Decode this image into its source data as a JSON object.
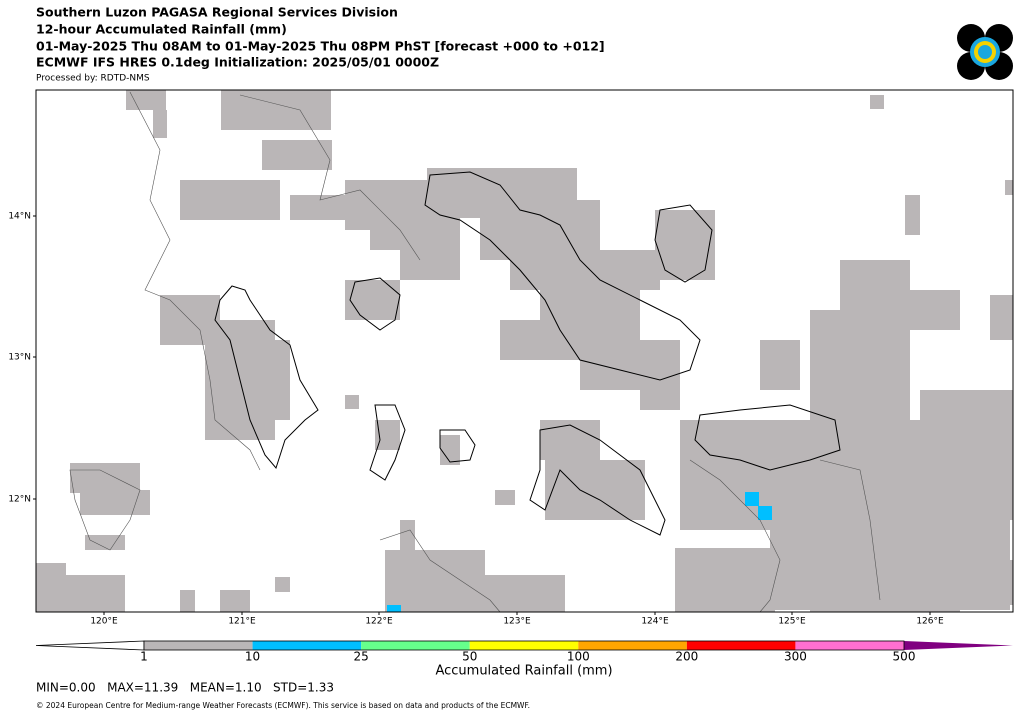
{
  "header": {
    "lines": [
      "Southern Luzon PAGASA Regional Services Division",
      "12-hour Accumulated Rainfall (mm)",
      "01-May-2025 Thu 08AM to 01-May-2025 Thu 08PM PhST [forecast +000 to +012]",
      "ECMWF IFS HRES 0.1deg Initialization: 2025/05/01 0000Z"
    ],
    "processed_by": "Processed by: RDTD-NMS"
  },
  "map": {
    "lon_labels": [
      "120°E",
      "121°E",
      "122°E",
      "123°E",
      "124°E",
      "125°E",
      "126°E"
    ],
    "lat_labels": [
      "14°N",
      "13°N",
      "12°N"
    ]
  },
  "colorbar": {
    "labels": [
      "1",
      "10",
      "25",
      "50",
      "100",
      "200",
      "300",
      "500"
    ],
    "colors": [
      "#bab6b7",
      "#00bfff",
      "#66ff8c",
      "#ffff00",
      "#ffa500",
      "#ff0000",
      "#ff6fd0",
      "#800080"
    ],
    "title": "Accumulated Rainfall (mm)"
  },
  "stats": "MIN=0.00   MAX=11.39   MEAN=1.10   STD=1.33",
  "footer": "© 2024 European Centre for Medium-range Weather Forecasts (ECMWF). This service is based on data and products of the ECMWF."
}
